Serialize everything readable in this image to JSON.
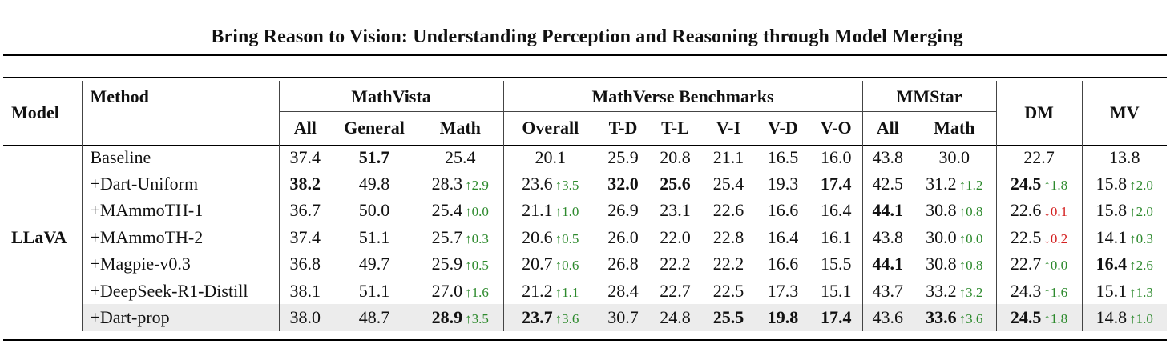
{
  "title": "Bring Reason to Vision: Understanding Perception and Reasoning through Model Merging",
  "header": {
    "model": "Model",
    "method": "Method",
    "groups": {
      "mathvista": "MathVista",
      "mathverse": "MathVerse Benchmarks",
      "mmstar": "MMStar",
      "dm": "DM",
      "mv": "MV"
    },
    "subcolumns": [
      "All",
      "General",
      "Math",
      "Overall",
      "T-D",
      "T-L",
      "V-I",
      "V-D",
      "V-O",
      "All",
      "Math"
    ]
  },
  "model_name": "LLaVA",
  "rows": [
    {
      "method": "Baseline",
      "cells": [
        {
          "v": "37.4"
        },
        {
          "v": "51.7",
          "b": true
        },
        {
          "v": "25.4"
        },
        {
          "v": "20.1"
        },
        {
          "v": "25.9"
        },
        {
          "v": "20.8"
        },
        {
          "v": "21.1"
        },
        {
          "v": "16.5"
        },
        {
          "v": "16.0"
        },
        {
          "v": "43.8"
        },
        {
          "v": "30.0"
        },
        {
          "v": "22.7"
        },
        {
          "v": "13.8"
        }
      ]
    },
    {
      "method": "+Dart-Uniform",
      "cells": [
        {
          "v": "38.2",
          "b": true
        },
        {
          "v": "49.8"
        },
        {
          "v": "28.3",
          "d": "↑2.9",
          "dir": "up"
        },
        {
          "v": "23.6",
          "d": "↑3.5",
          "dir": "up"
        },
        {
          "v": "32.0",
          "b": true
        },
        {
          "v": "25.6",
          "b": true
        },
        {
          "v": "25.4"
        },
        {
          "v": "19.3"
        },
        {
          "v": "17.4",
          "b": true
        },
        {
          "v": "42.5"
        },
        {
          "v": "31.2",
          "d": "↑1.2",
          "dir": "up"
        },
        {
          "v": "24.5",
          "b": true,
          "d": "↑1.8",
          "dir": "up"
        },
        {
          "v": "15.8",
          "d": "↑2.0",
          "dir": "up"
        }
      ]
    },
    {
      "method": "+MAmmoTH-1",
      "cells": [
        {
          "v": "36.7"
        },
        {
          "v": "50.0"
        },
        {
          "v": "25.4",
          "d": "↑0.0",
          "dir": "up"
        },
        {
          "v": "21.1",
          "d": "↑1.0",
          "dir": "up"
        },
        {
          "v": "26.9"
        },
        {
          "v": "23.1"
        },
        {
          "v": "22.6"
        },
        {
          "v": "16.6"
        },
        {
          "v": "16.4"
        },
        {
          "v": "44.1",
          "b": true
        },
        {
          "v": "30.8",
          "d": "↑0.8",
          "dir": "up"
        },
        {
          "v": "22.6",
          "d": "↓0.1",
          "dir": "dn"
        },
        {
          "v": "15.8",
          "d": "↑2.0",
          "dir": "up"
        }
      ]
    },
    {
      "method": "+MAmmoTH-2",
      "cells": [
        {
          "v": "37.4"
        },
        {
          "v": "51.1"
        },
        {
          "v": "25.7",
          "d": "↑0.3",
          "dir": "up"
        },
        {
          "v": "20.6",
          "d": "↑0.5",
          "dir": "up"
        },
        {
          "v": "26.0"
        },
        {
          "v": "22.0"
        },
        {
          "v": "22.8"
        },
        {
          "v": "16.4"
        },
        {
          "v": "16.1"
        },
        {
          "v": "43.8"
        },
        {
          "v": "30.0",
          "d": "↑0.0",
          "dir": "up"
        },
        {
          "v": "22.5",
          "d": "↓0.2",
          "dir": "dn"
        },
        {
          "v": "14.1",
          "d": "↑0.3",
          "dir": "up"
        }
      ]
    },
    {
      "method": "+Magpie-v0.3",
      "cells": [
        {
          "v": "36.8"
        },
        {
          "v": "49.7"
        },
        {
          "v": "25.9",
          "d": "↑0.5",
          "dir": "up"
        },
        {
          "v": "20.7",
          "d": "↑0.6",
          "dir": "up"
        },
        {
          "v": "26.8"
        },
        {
          "v": "22.2"
        },
        {
          "v": "22.2"
        },
        {
          "v": "16.6"
        },
        {
          "v": "15.5"
        },
        {
          "v": "44.1",
          "b": true
        },
        {
          "v": "30.8",
          "d": "↑0.8",
          "dir": "up"
        },
        {
          "v": "22.7",
          "d": "↑0.0",
          "dir": "up"
        },
        {
          "v": "16.4",
          "b": true,
          "d": "↑2.6",
          "dir": "up"
        }
      ]
    },
    {
      "method": "+DeepSeek-R1-Distill",
      "cells": [
        {
          "v": "38.1"
        },
        {
          "v": "51.1"
        },
        {
          "v": "27.0",
          "d": "↑1.6",
          "dir": "up"
        },
        {
          "v": "21.2",
          "d": "↑1.1",
          "dir": "up"
        },
        {
          "v": "28.4"
        },
        {
          "v": "22.7"
        },
        {
          "v": "22.5"
        },
        {
          "v": "17.3"
        },
        {
          "v": "15.1"
        },
        {
          "v": "43.7"
        },
        {
          "v": "33.2",
          "d": "↑3.2",
          "dir": "up"
        },
        {
          "v": "24.3",
          "d": "↑1.6",
          "dir": "up"
        },
        {
          "v": "15.1",
          "d": "↑1.3",
          "dir": "up"
        }
      ]
    },
    {
      "method": "+Dart-prop",
      "highlight": true,
      "cells": [
        {
          "v": "38.0"
        },
        {
          "v": "48.7"
        },
        {
          "v": "28.9",
          "b": true,
          "d": "↑3.5",
          "dir": "up"
        },
        {
          "v": "23.7",
          "b": true,
          "d": "↑3.6",
          "dir": "up"
        },
        {
          "v": "30.7"
        },
        {
          "v": "24.8"
        },
        {
          "v": "25.5",
          "b": true
        },
        {
          "v": "19.8",
          "b": true
        },
        {
          "v": "17.4",
          "b": true
        },
        {
          "v": "43.6"
        },
        {
          "v": "33.6",
          "b": true,
          "d": "↑3.6",
          "dir": "up"
        },
        {
          "v": "24.5",
          "b": true,
          "d": "↑1.8",
          "dir": "up"
        },
        {
          "v": "14.8",
          "d": "↑1.0",
          "dir": "up"
        }
      ]
    }
  ],
  "colors": {
    "increase": "#2d8a2d",
    "decrease": "#d42020",
    "highlight_row": "#ececec"
  }
}
